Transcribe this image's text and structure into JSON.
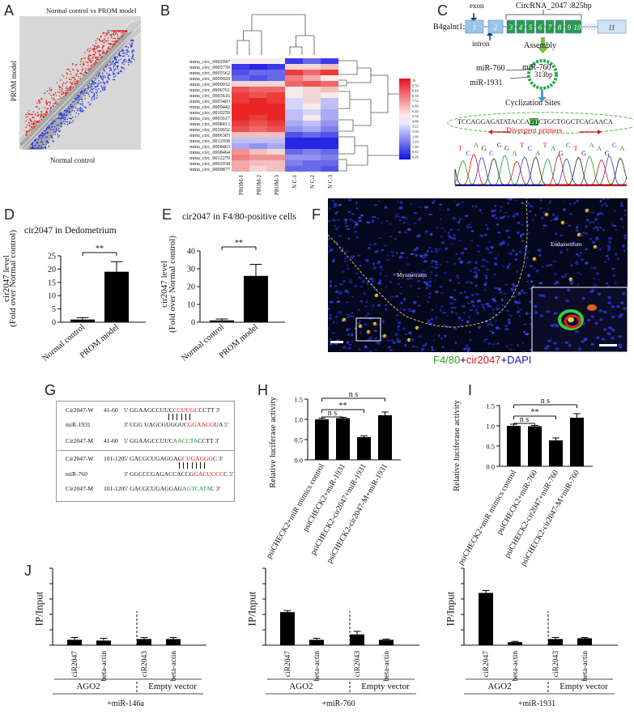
{
  "panels": {
    "A": {
      "letter": "A",
      "title": "Normal control vs PROM model",
      "xlabel": "Normal control",
      "ylabel": "PROM model"
    },
    "B": {
      "letter": "B",
      "rows": [
        "mmu_circ_0002047",
        "mmu_circ_0005739",
        "mmu_circ_0005562",
        "mmu_circ_0009020",
        "mmu_circ_0000032",
        "mmu_circ_0006761",
        "mmu_circ_0003616",
        "mmu_circ_0003403",
        "mmu_circ_0009442",
        "mmu_circ_0010259",
        "mmu_circ_0003617",
        "mmu_circ_0008413",
        "mmu_circ_0010652",
        "mmu_circ_0006303",
        "mmu_circ_0012938",
        "mmu_circ_0008463",
        "mmu_circ_0008464",
        "mmu_circ_0012270",
        "mmu_circ_0002038",
        "mmu_circ_0009877"
      ],
      "cols": [
        "PROM-1",
        "PROM-2",
        "PROM-3",
        "N C-1",
        "N C-2",
        "N C-3"
      ],
      "scale": [
        "10",
        "9.50",
        "8.84",
        "8.18",
        "7.52",
        "6.86",
        "6.20",
        "5.54",
        "4.88",
        "4.22",
        "3.56",
        "2.90",
        "2.24",
        "1.58",
        "0.92",
        "0.26"
      ]
    },
    "C": {
      "letter": "C",
      "gene": "B4galnt1:",
      "circ": "CircRNA_2047 :825bp",
      "exon": "exon",
      "intron": "intron",
      "exons": [
        "1",
        "2",
        "3",
        "4",
        "5",
        "6",
        "7",
        "8",
        "9",
        "10",
        "11"
      ],
      "assembly": "Assembly",
      "mir760": "miR-760",
      "mir1931": "miR-1931",
      "size": "313bp",
      "cyc": "Cyclization Sites",
      "seq_a": "TCCAGGAGATATACCA",
      "seq_b": "GT",
      "seq_c": "CTGCTGGCTCAGAACA",
      "divergent": "Divergent primers"
    },
    "D": {
      "letter": "D",
      "title": "cir2047 in Dedometrium",
      "ylabel1": "cir2047 level",
      "ylabel2": "(Fold over Normal control)",
      "sig": "**"
    },
    "E": {
      "letter": "E",
      "title": "cir2047  in F4/80-positive cells",
      "ylabel1": "cir2047 level",
      "ylabel2": "(Fold over Normal control)",
      "sig": "**"
    },
    "F": {
      "letter": "F",
      "myometrium": "Myometrium",
      "endometrium": "Endometrium",
      "caption_a": "F4/80",
      "caption_b": "+",
      "caption_c": "cir2047",
      "caption_d": "+",
      "caption_e": "DAPI"
    },
    "G": {
      "letter": "G",
      "box1": {
        "l1": {
          "n": "Cir2047-W",
          "p": "41-60",
          "a": "5' GGAAGCCUUC",
          "b": "CCUUGC",
          "c": "CCTT  3'"
        },
        "l2": {
          "n": "miR-1931",
          "p": "",
          "a": "3' CGG UAGCGUGGUC",
          "b": "GGAACG",
          "c": "UA  5'"
        },
        "l3": {
          "n": "Cir2047-M",
          "p": "41-60",
          "a": "5' GGAAGCCUUC",
          "b": "AACCTA",
          "c": "CCTT  3'"
        }
      },
      "box2": {
        "l1": {
          "n": "Cir2047-W",
          "p": "101-120",
          "a": "5' GACGCUGAGGAG",
          "b": "CUGAGGG",
          "c": "C  3'"
        },
        "l2": {
          "n": "miR-760",
          "p": "",
          "a": "3' GGCCCGAGACCACCG",
          "b": "GACUCCC",
          "c": "C  5'"
        },
        "l3": {
          "n": "Cir2047-M",
          "p": "101-120",
          "a": "5' GACGCUGAGGAG",
          "b": "AGTCATA",
          "c": "C  3'"
        }
      }
    },
    "H": {
      "letter": "H",
      "ylabel": "Relative luciferase activity",
      "ns1": "n s",
      "ss": "**",
      "ns2": "n s"
    },
    "I": {
      "letter": "I",
      "ylabel": "Relative luciferase activity",
      "ns1": "n s",
      "ss": "**",
      "ns2": "n s"
    },
    "J": {
      "letter": "J",
      "ylabel": "IP/Input",
      "ago2": "AGO2",
      "empty": "Empty vector",
      "mirs": [
        "+miR-146a",
        "+miR-760",
        "+miR-1931"
      ]
    }
  },
  "chart_data": [
    {
      "id": "D",
      "type": "bar",
      "title": "cir2047 in Dedometrium",
      "categories": [
        "Normal control",
        "PROM model"
      ],
      "values": [
        1,
        19
      ],
      "errors": [
        0.7,
        3.8
      ],
      "ylabel": "cir2047 level (Fold over Normal control)",
      "ylim": [
        0,
        25
      ],
      "yticks": [
        0,
        5,
        10,
        15,
        20,
        25
      ]
    },
    {
      "id": "E",
      "type": "bar",
      "title": "cir2047  in F4/80-positive cells",
      "categories": [
        "Normal control",
        "PROM model"
      ],
      "values": [
        1,
        26
      ],
      "errors": [
        0.8,
        6.5
      ],
      "ylabel": "cir2047 level (Fold over Normal control)",
      "ylim": [
        0,
        40
      ],
      "yticks": [
        0,
        10,
        20,
        30,
        40
      ]
    },
    {
      "id": "H",
      "type": "bar",
      "categories": [
        "psiCHECK2+miR mimics control",
        "psiCHECK2+miR-1931",
        "psiCHECK2-cir2047+miR-1931",
        "psiCHECK2-cir2047-M+miR-1931"
      ],
      "values": [
        1.0,
        1.03,
        0.56,
        1.1
      ],
      "errors": [
        0.03,
        0.02,
        0.03,
        0.08
      ],
      "ylabel": "Relative luciferase activity",
      "ylim": [
        0,
        1.5
      ],
      "yticks": [
        "0.0",
        "0.5",
        "1.0",
        "1.5"
      ]
    },
    {
      "id": "I",
      "type": "bar",
      "categories": [
        "psiCHECK2+miR mimics control",
        "psiCHECK2+miR-760",
        "psiCHECK2-cir2047+miR-760",
        "psiCHECK2-cir2047-M+miR-760"
      ],
      "values": [
        1.0,
        0.99,
        0.64,
        1.2
      ],
      "errors": [
        0.04,
        0.02,
        0.06,
        0.1
      ],
      "ylabel": "Relative luciferase activity",
      "ylim": [
        0,
        1.5
      ],
      "yticks": [
        "0.0",
        "0.5",
        "1.0",
        "1.5"
      ]
    },
    {
      "id": "J1",
      "type": "bar",
      "categories": [
        "ciR2047",
        "beta-actin",
        "ciR2043",
        "beta-actin"
      ],
      "values": [
        0.07,
        0.06,
        0.08,
        0.08
      ],
      "errors": [
        0.03,
        0.03,
        0.02,
        0.02
      ],
      "ylabel": "IP/Input",
      "ylim": [
        0,
        1.0
      ],
      "yticks": [
        "0.0",
        "0.2",
        "0.4",
        "0.6",
        "0.8",
        "1.0"
      ],
      "xlabel": "+miR-146a"
    },
    {
      "id": "J2",
      "type": "bar",
      "categories": [
        "ciR2047",
        "beta-actin",
        "ciR2043",
        "beta-actin"
      ],
      "values": [
        0.43,
        0.07,
        0.14,
        0.07
      ],
      "errors": [
        0.02,
        0.02,
        0.04,
        0.01
      ],
      "ylabel": "IP/Input",
      "ylim": [
        0,
        1.0
      ],
      "yticks": [
        "0.0",
        "0.2",
        "0.4",
        "0.6",
        "0.8",
        "1.0"
      ],
      "xlabel": "+miR-760"
    },
    {
      "id": "J3",
      "type": "bar",
      "categories": [
        "ciR2047",
        "beta-actin",
        "ciR2043",
        "beta-actin"
      ],
      "values": [
        0.68,
        0.04,
        0.08,
        0.09
      ],
      "errors": [
        0.03,
        0.01,
        0.02,
        0.01
      ],
      "ylabel": "IP/Input",
      "ylim": [
        0,
        1.0
      ],
      "yticks": [
        "0.0",
        "0.2",
        "0.4",
        "0.6",
        "0.8",
        "1.0"
      ],
      "xlabel": "+miR-1931"
    }
  ]
}
